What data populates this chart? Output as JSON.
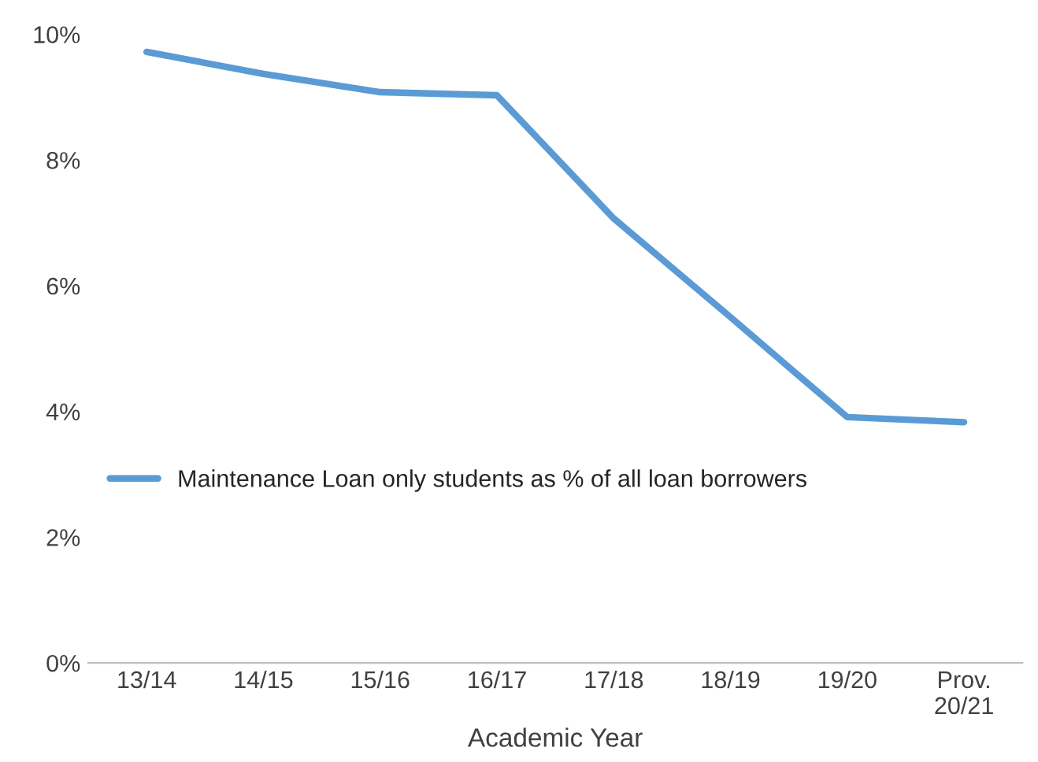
{
  "chart_data": {
    "type": "line",
    "xlabel": "Academic Year",
    "categories": [
      "13/14",
      "14/15",
      "15/16",
      "16/17",
      "17/18",
      "18/19",
      "19/20",
      "Prov.\n20/21"
    ],
    "series": [
      {
        "name": "Maintenance Loan only students as % of all loan borrowers",
        "color": "#5b9bd5",
        "values": [
          9.72,
          9.37,
          9.08,
          9.03,
          7.07,
          5.5,
          3.91,
          3.83
        ]
      }
    ],
    "ylim": [
      0,
      10
    ],
    "yticks": [
      {
        "value": 0,
        "label": "0%"
      },
      {
        "value": 2,
        "label": "2%"
      },
      {
        "value": 4,
        "label": "4%"
      },
      {
        "value": 6,
        "label": "6%"
      },
      {
        "value": 8,
        "label": "8%"
      },
      {
        "value": 10,
        "label": "10%"
      }
    ],
    "grid": false,
    "legend": "center left",
    "marker": "none",
    "line_style": "solid"
  }
}
